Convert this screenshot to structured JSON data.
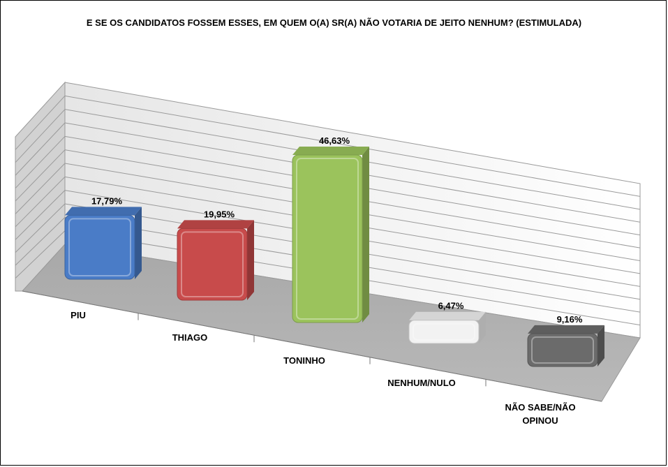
{
  "chart_data": {
    "type": "bar",
    "title": "E SE OS CANDIDATOS FOSSEM ESSES, EM QUEM O(A) SR(A) NÃO VOTARIA DE JEITO NENHUM? (ESTIMULADA)",
    "categories": [
      "PIU",
      "THIAGO",
      "TONINHO",
      "NENHUM/NULO",
      "NÃO SABE/NÃO OPINOU"
    ],
    "values": [
      17.79,
      19.95,
      46.63,
      6.47,
      9.16
    ],
    "value_labels": [
      "17,79%",
      "19,95%",
      "46,63%",
      "6,47%",
      "9,16%"
    ],
    "colors": [
      "#4a7cc7",
      "#c84b4b",
      "#9bc35c",
      "#f2f2f2",
      "#6b6b6b"
    ],
    "grid": true,
    "legend": "none",
    "ylim": [
      0,
      60
    ]
  }
}
